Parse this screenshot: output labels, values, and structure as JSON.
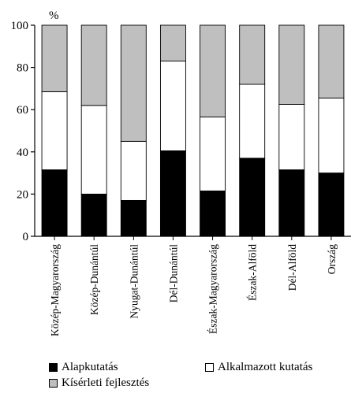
{
  "chart_data": {
    "type": "bar",
    "stacked": true,
    "unit": "%",
    "categories": [
      "Közép-Magyarország",
      "Közép-Dunántúl",
      "Nyugat-Dunántúl",
      "Dél-Dunántúl",
      "Észak-Magyarország",
      "Észak-Alföld",
      "Dél-Alföld",
      "Ország"
    ],
    "ylim": [
      0,
      100
    ],
    "yticks": [
      0,
      20,
      40,
      60,
      80,
      100
    ],
    "grid": false,
    "legend_position": "bottom",
    "series": [
      {
        "name": "Alapkutatás",
        "color": "#000000",
        "values": [
          31.5,
          20,
          17,
          40.5,
          21.5,
          37,
          31.5,
          30
        ]
      },
      {
        "name": "Alkalmazott kutatás",
        "color": "#ffffff",
        "values": [
          37,
          42,
          28,
          42.5,
          35,
          35,
          31,
          35.5
        ]
      },
      {
        "name": "Kísérleti fejlesztés",
        "color": "#bfbfbf",
        "values": [
          31.5,
          38,
          55,
          17,
          43.5,
          28,
          37.5,
          34.5
        ]
      }
    ]
  }
}
